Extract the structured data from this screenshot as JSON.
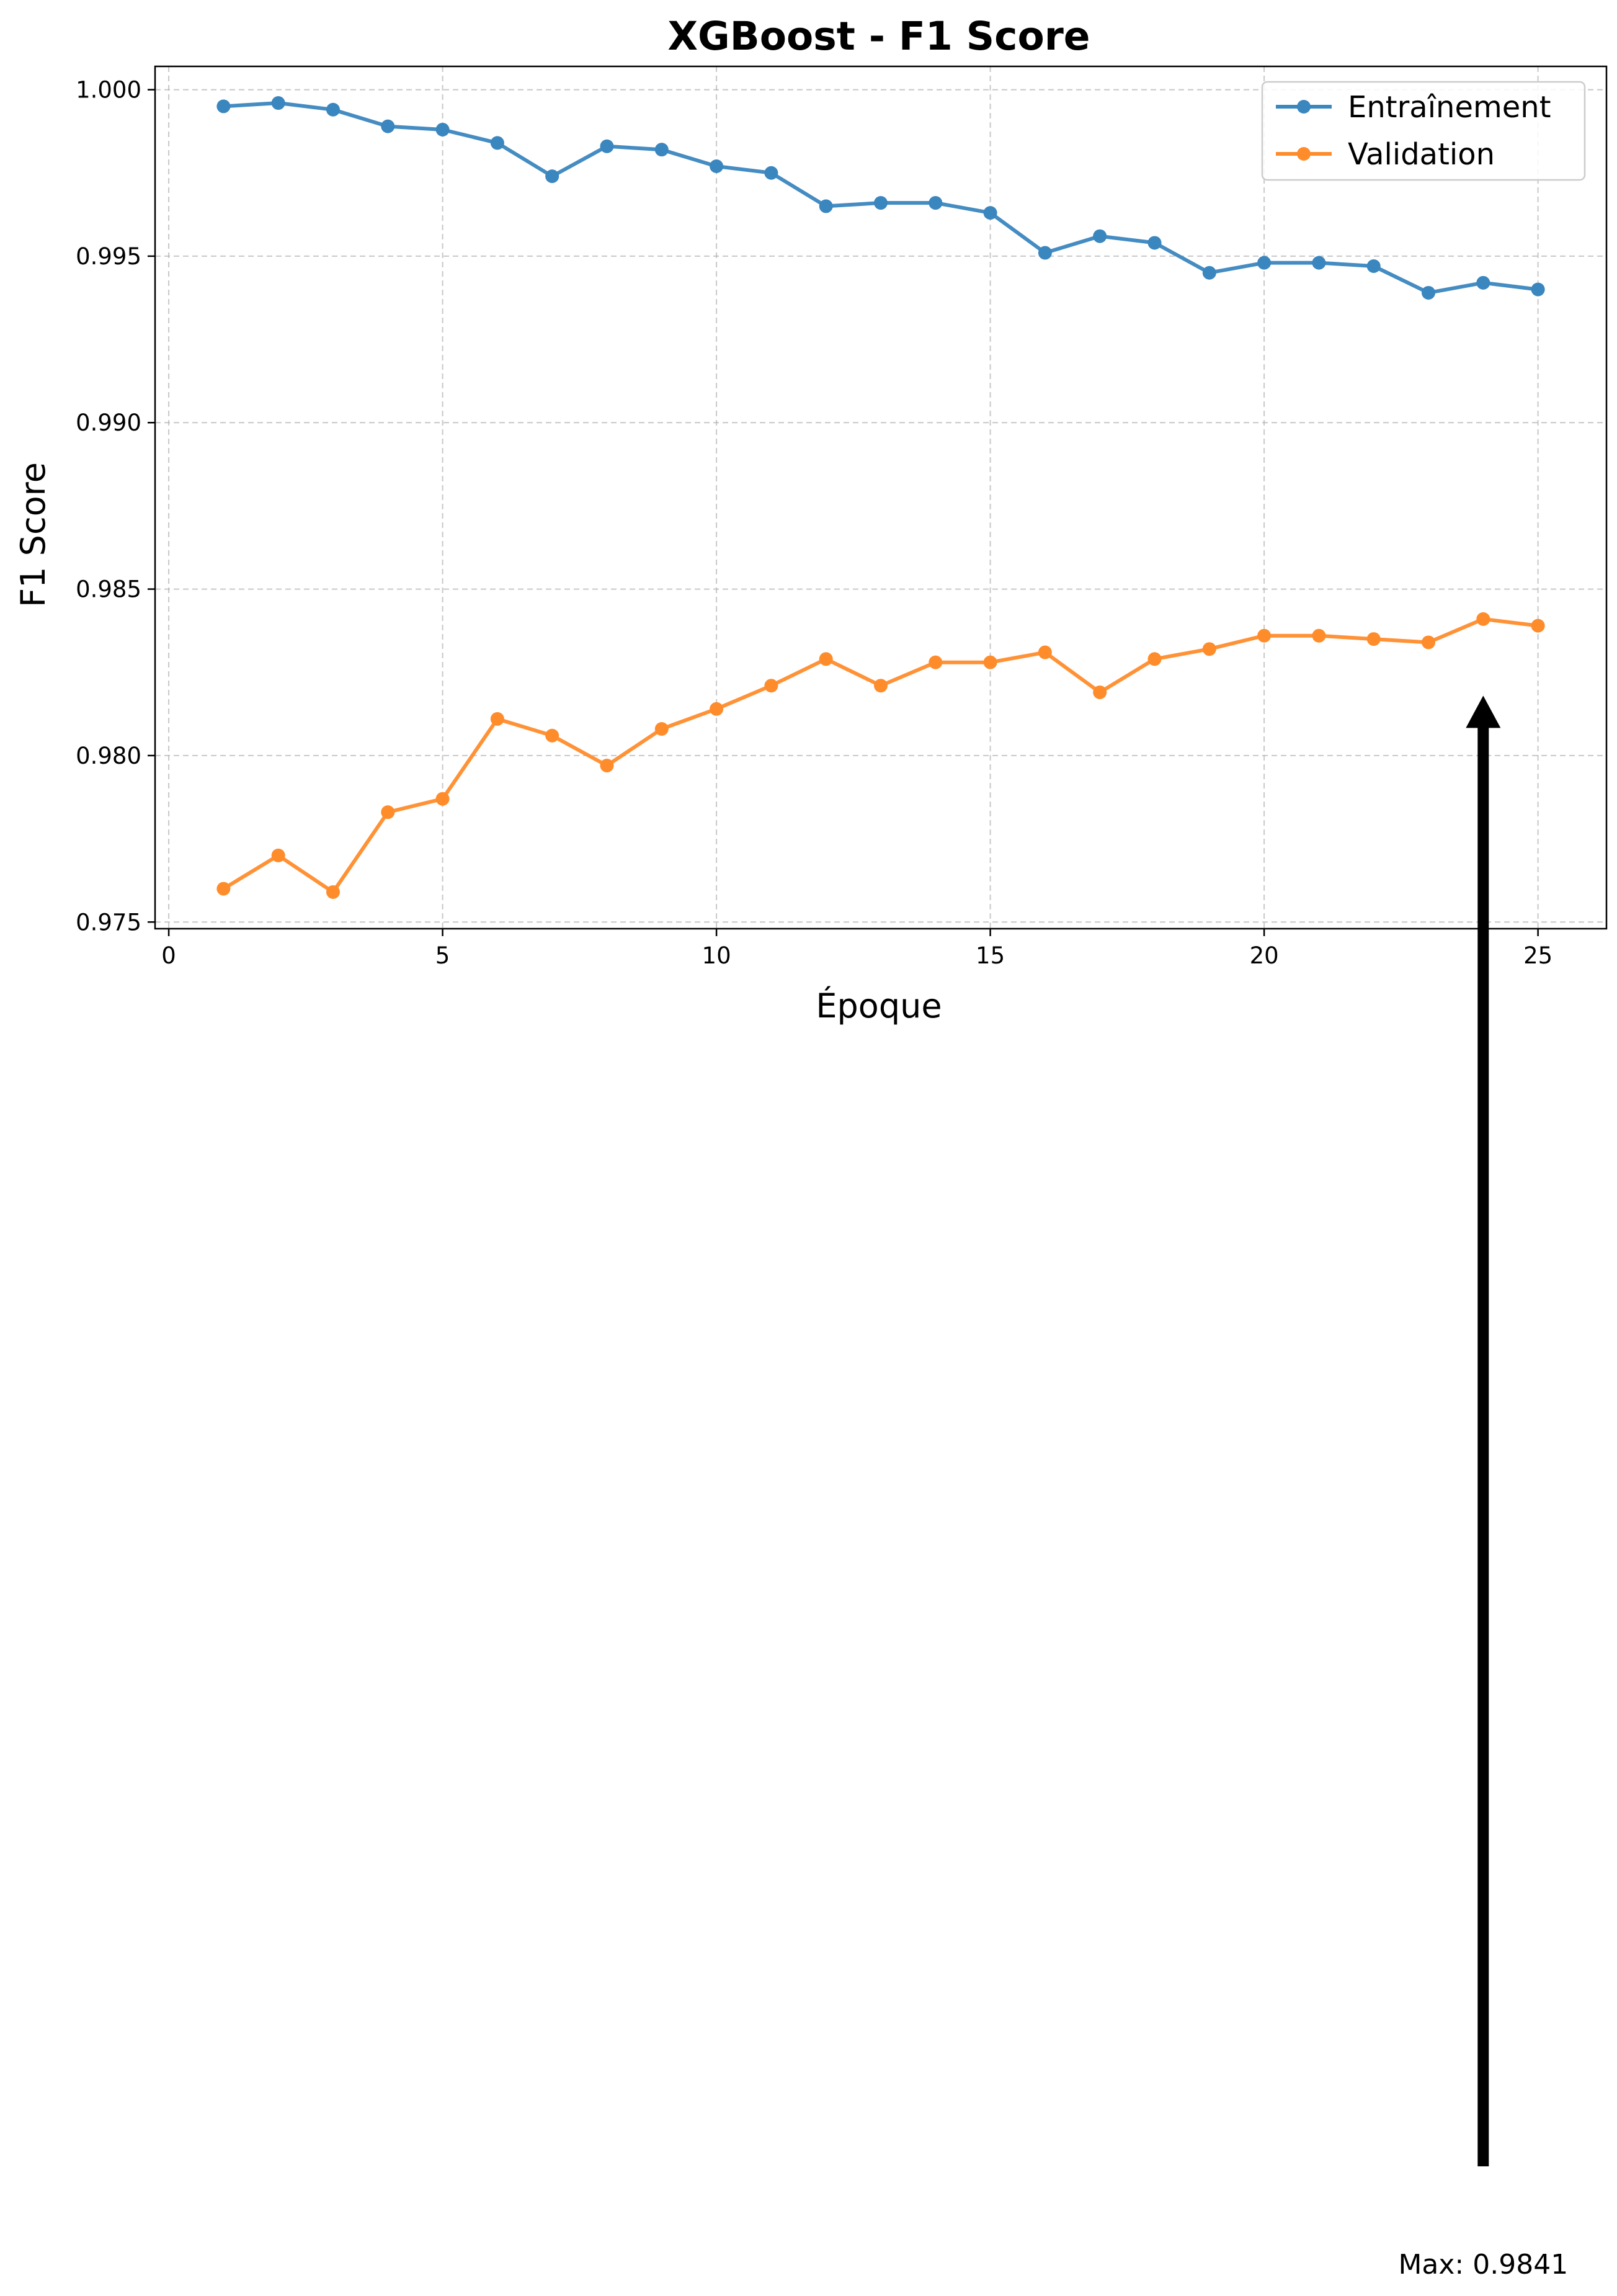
{
  "chart_data": {
    "type": "line",
    "title": "XGBoost - F1 Score",
    "xlabel": "Époque",
    "ylabel": "F1 Score",
    "xlim": [
      -0.25,
      26.25
    ],
    "ylim": [
      0.9748,
      1.0007
    ],
    "x_ticks": [
      0,
      5,
      10,
      15,
      20,
      25
    ],
    "y_ticks": [
      0.975,
      0.98,
      0.985,
      0.99,
      0.995,
      1.0
    ],
    "x_tick_labels": [
      "0",
      "5",
      "10",
      "15",
      "20",
      "25"
    ],
    "y_tick_labels": [
      "0.975",
      "0.980",
      "0.985",
      "0.990",
      "0.995",
      "1.000"
    ],
    "grid": true,
    "legend_position": "top-right",
    "x": [
      1,
      2,
      3,
      4,
      5,
      6,
      7,
      8,
      9,
      10,
      11,
      12,
      13,
      14,
      15,
      16,
      17,
      18,
      19,
      20,
      21,
      22,
      23,
      24,
      25
    ],
    "series": [
      {
        "name": "Entraînement",
        "color": "#3a86bf",
        "values": [
          0.9995,
          0.9996,
          0.9994,
          0.9989,
          0.9988,
          0.9984,
          0.9974,
          0.9983,
          0.9982,
          0.9977,
          0.9975,
          0.9965,
          0.9966,
          0.9966,
          0.9963,
          0.9951,
          0.9956,
          0.9954,
          0.9945,
          0.9948,
          0.9948,
          0.9947,
          0.9939,
          0.9942,
          0.994
        ]
      },
      {
        "name": "Validation",
        "color": "#ff8c2b",
        "values": [
          0.976,
          0.977,
          0.9759,
          0.9783,
          0.9787,
          0.9811,
          0.9806,
          0.9797,
          0.9808,
          0.9814,
          0.9821,
          0.9829,
          0.9821,
          0.9828,
          0.9828,
          0.9831,
          0.9819,
          0.9829,
          0.9832,
          0.9836,
          0.9836,
          0.9835,
          0.9834,
          0.9841,
          0.9839
        ]
      }
    ],
    "annotation": {
      "text": "Max: 0.9841",
      "target_x": 24,
      "target_y": 0.9818
    }
  }
}
